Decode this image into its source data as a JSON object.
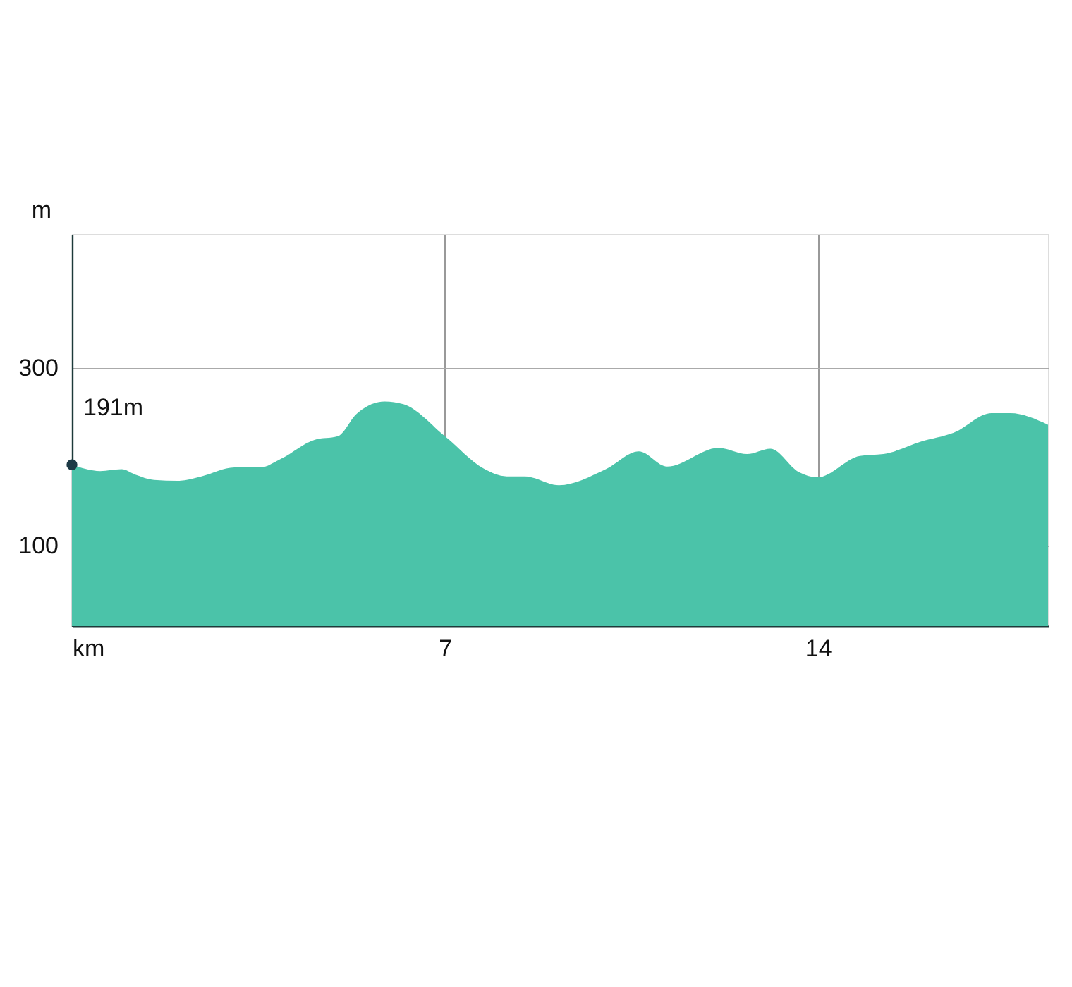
{
  "chart_data": {
    "type": "area",
    "ylabel": "m",
    "x": [
      0,
      0.53,
      0.93,
      1.19,
      1.54,
      1.99,
      2.43,
      3.05,
      3.53,
      3.93,
      4.55,
      4.99,
      5.34,
      5.87,
      6.22,
      7.02,
      7.72,
      8.16,
      8.5,
      9.14,
      10.02,
      10.64,
      11.17,
      12.14,
      12.67,
      13.11,
      13.64,
      13.99,
      14.79,
      15.23,
      15.93,
      16.55,
      17.26,
      17.61,
      18.32
    ],
    "series": [
      {
        "color": "#4bc3a9",
        "values": [
          191,
          184,
          186,
          180,
          174,
          173,
          178,
          188,
          188,
          198,
          219,
          223,
          248,
          262,
          259,
          222,
          187,
          178,
          178,
          168,
          186,
          206,
          189,
          210,
          203,
          209,
          183,
          177,
          201,
          203,
          217,
          227,
          249,
          249,
          236
        ]
      }
    ],
    "xlim": [
      0,
      18.32
    ],
    "xticks": [
      {
        "value": 0,
        "label": "km"
      },
      7,
      14
    ],
    "ylim": [
      10,
      450
    ],
    "yticks": [
      100,
      300
    ],
    "grid": true,
    "annotations": [
      {
        "text": "191m",
        "x": 0,
        "y": 191
      }
    ]
  }
}
